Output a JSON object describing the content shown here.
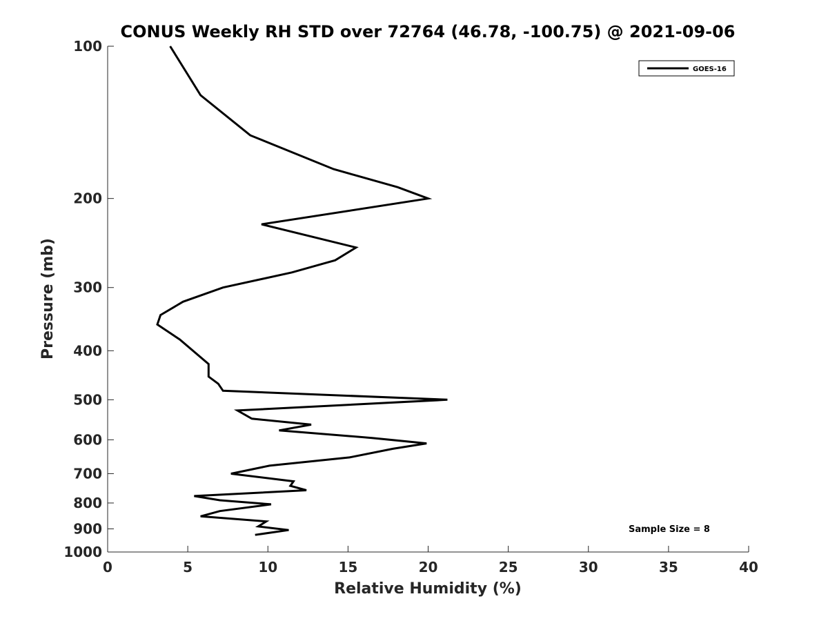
{
  "chart_data": {
    "type": "line",
    "title": "CONUS Weekly RH STD over 72764 (46.78, -100.75) @ 2021-09-06",
    "xlabel": "Relative Humidity (%)",
    "ylabel": "Pressure (mb)",
    "xlim": [
      0,
      40
    ],
    "ylim": [
      100,
      1000
    ],
    "y_scale": "log",
    "y_reversed": true,
    "grid": false,
    "legend_position": "top-right",
    "x_ticks": [
      "0",
      "5",
      "10",
      "15",
      "20",
      "25",
      "30",
      "35",
      "40"
    ],
    "y_ticks": [
      "100",
      "200",
      "300",
      "400",
      "500",
      "600",
      "700",
      "800",
      "900",
      "1000"
    ],
    "annotation": "Sample Size = 8",
    "series": [
      {
        "name": "GOES-16",
        "color": "#000000",
        "points": [
          [
            3.9,
            100
          ],
          [
            5.8,
            125
          ],
          [
            8.9,
            150
          ],
          [
            14.1,
            175
          ],
          [
            18.1,
            190
          ],
          [
            20.0,
            200
          ],
          [
            9.6,
            225
          ],
          [
            15.5,
            250
          ],
          [
            14.2,
            265
          ],
          [
            11.5,
            280
          ],
          [
            7.2,
            300
          ],
          [
            4.7,
            320
          ],
          [
            3.3,
            340
          ],
          [
            3.1,
            355
          ],
          [
            4.5,
            380
          ],
          [
            6.3,
            425
          ],
          [
            6.3,
            450
          ],
          [
            6.9,
            465
          ],
          [
            7.2,
            480
          ],
          [
            21.2,
            500
          ],
          [
            8.1,
            525
          ],
          [
            9.0,
            545
          ],
          [
            12.7,
            560
          ],
          [
            10.7,
            575
          ],
          [
            16.5,
            595
          ],
          [
            19.9,
            610
          ],
          [
            17.8,
            625
          ],
          [
            15.1,
            650
          ],
          [
            10.1,
            675
          ],
          [
            7.7,
            700
          ],
          [
            11.6,
            725
          ],
          [
            11.4,
            740
          ],
          [
            12.4,
            755
          ],
          [
            5.4,
            775
          ],
          [
            7.0,
            790
          ],
          [
            10.2,
            805
          ],
          [
            7.0,
            830
          ],
          [
            5.8,
            850
          ],
          [
            9.9,
            870
          ],
          [
            9.4,
            890
          ],
          [
            11.3,
            905
          ],
          [
            9.2,
            925
          ]
        ]
      }
    ]
  }
}
